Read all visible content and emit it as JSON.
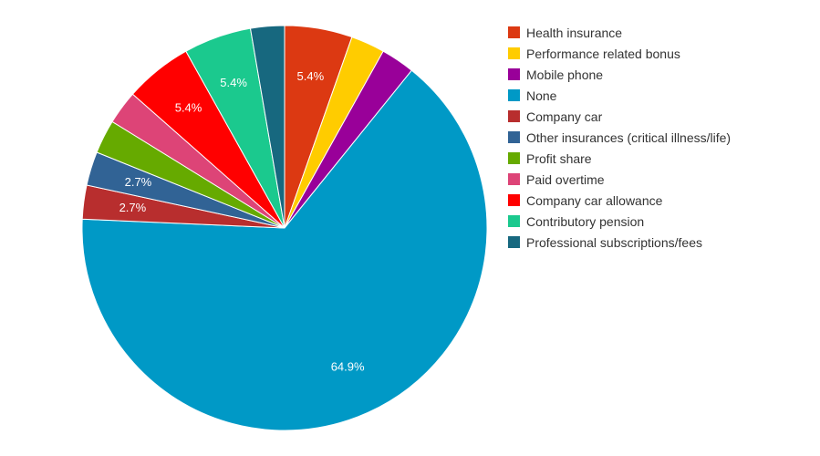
{
  "chart_data": {
    "type": "pie",
    "title": "",
    "legend_position": "right",
    "slices": [
      {
        "label": "Health insurance",
        "percent": 5.4,
        "color": "#DC3912",
        "data_label": "5.4%"
      },
      {
        "label": "Performance related bonus",
        "percent": 2.7,
        "color": "#FFCC00",
        "data_label": ""
      },
      {
        "label": "Mobile phone",
        "percent": 2.7,
        "color": "#990099",
        "data_label": ""
      },
      {
        "label": "None",
        "percent": 64.9,
        "color": "#0099C6",
        "data_label": "64.9%"
      },
      {
        "label": "Company car",
        "percent": 2.7,
        "color": "#B82E2E",
        "data_label": "2.7%"
      },
      {
        "label": "Other insurances (critical illness/life)",
        "percent": 2.7,
        "color": "#316395",
        "data_label": "2.7%"
      },
      {
        "label": "Profit share",
        "percent": 2.7,
        "color": "#66AA00",
        "data_label": ""
      },
      {
        "label": "Paid overtime",
        "percent": 2.7,
        "color": "#DD4477",
        "data_label": ""
      },
      {
        "label": "Company car allowance",
        "percent": 5.4,
        "color": "#FF0000",
        "data_label": "5.4%"
      },
      {
        "label": "Contributory pension",
        "percent": 5.4,
        "color": "#1BC98E",
        "data_label": "5.4%"
      },
      {
        "label": "Professional subscriptions/fees",
        "percent": 2.7,
        "color": "#17687F",
        "data_label": ""
      }
    ]
  }
}
